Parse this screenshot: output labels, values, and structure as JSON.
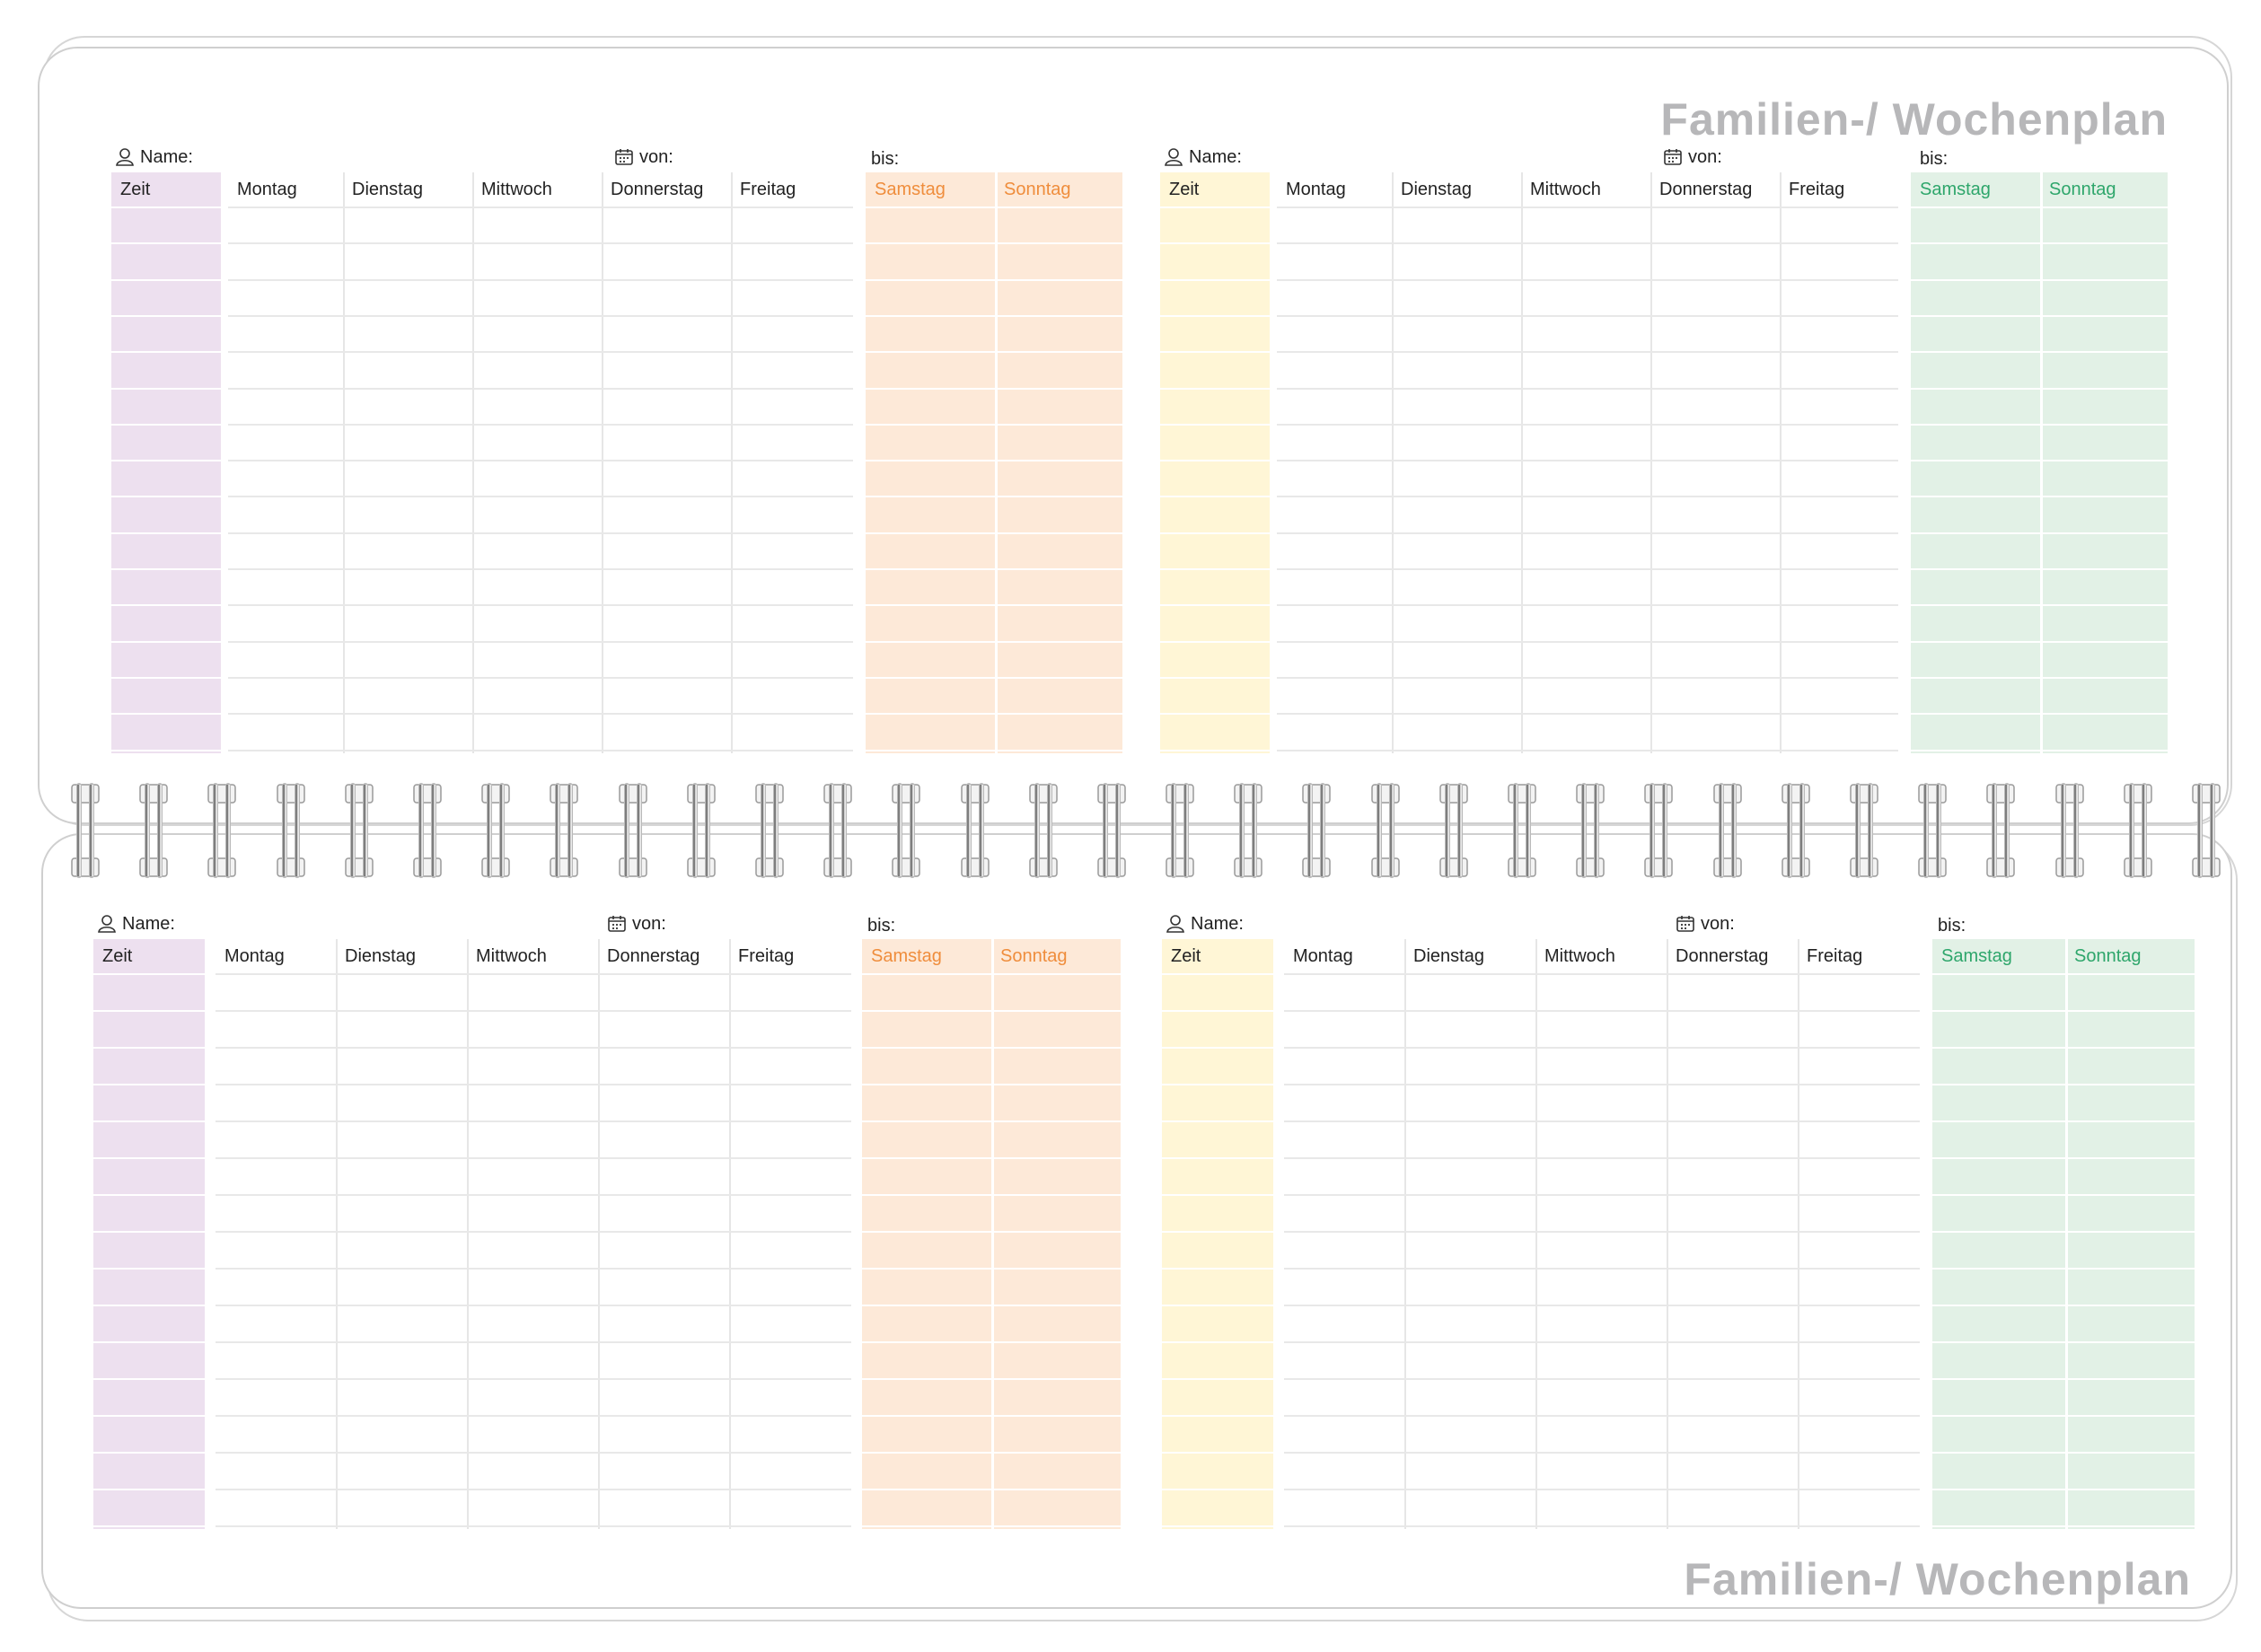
{
  "brand_title": "Familien-/ Wochenplan",
  "labels": {
    "name": "Name:",
    "von": "von:",
    "bis": "bis:"
  },
  "columns": {
    "zeit": "Zeit",
    "days": [
      "Montag",
      "Dienstag",
      "Mittwoch",
      "Donnerstag",
      "Freitag"
    ],
    "weekend": [
      "Samstag",
      "Sonntag"
    ]
  },
  "icons": {
    "name": "person-icon",
    "von": "calendar-icon"
  },
  "planners": [
    {
      "id": "top-left",
      "zeit_color": "#ede0ef",
      "weekend_color": "#fde9d8",
      "weekend_text": "#ef8d3c"
    },
    {
      "id": "top-right",
      "zeit_color": "#fff6d6",
      "weekend_color": "#e2f1e6",
      "weekend_text": "#2ea66b"
    },
    {
      "id": "bottom-left",
      "zeit_color": "#ede0ef",
      "weekend_color": "#fde9d8",
      "weekend_text": "#ef8d3c"
    },
    {
      "id": "bottom-right",
      "zeit_color": "#fff6d6",
      "weekend_color": "#e2f1e6",
      "weekend_text": "#2ea66b"
    }
  ],
  "rows_per_planner": 15,
  "ring_count": 32
}
